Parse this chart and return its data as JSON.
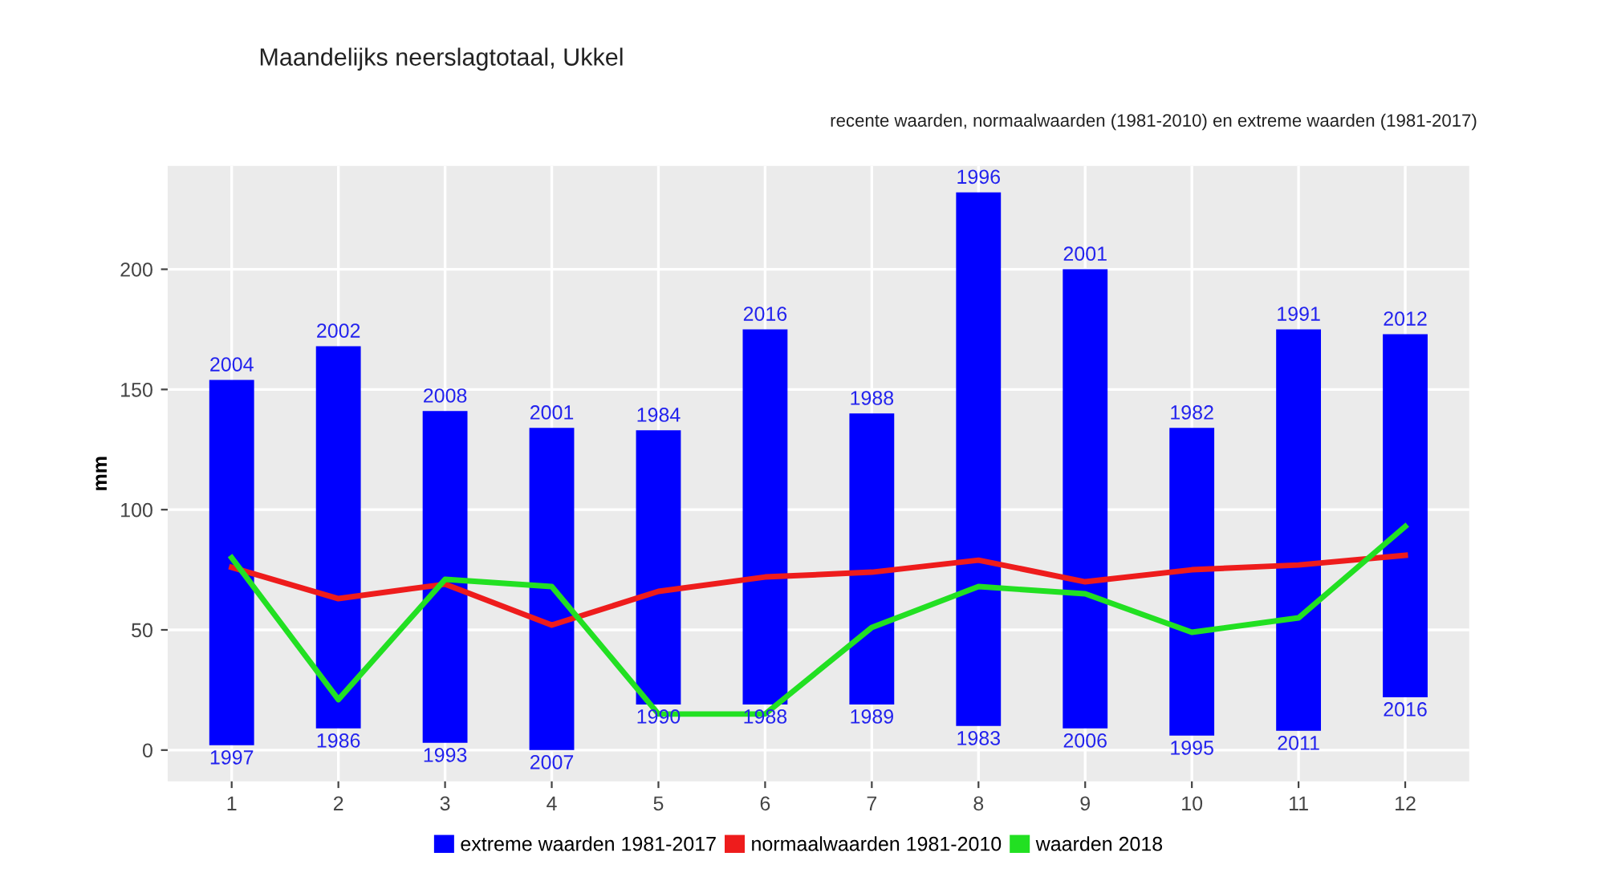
{
  "chart_data": {
    "type": "bar",
    "title": "Maandelijks neerslagtotaal, Ukkel",
    "subtitle": "recente waarden, normaalwaarden (1981-2010) en extreme waarden (1981-2017)",
    "ylabel": "mm",
    "categories": [
      "1",
      "2",
      "3",
      "4",
      "5",
      "6",
      "7",
      "8",
      "9",
      "10",
      "11",
      "12"
    ],
    "series": [
      {
        "name": "extreme waarden 1981-2017",
        "color": "#0000ff",
        "base": [
          2,
          9,
          3,
          0,
          19,
          19,
          19,
          10,
          9,
          6,
          8,
          22
        ],
        "values": [
          152,
          159,
          138,
          134,
          114,
          156,
          121,
          222,
          191,
          128,
          167,
          151
        ]
      },
      {
        "name": "normaalwaarden 1981-2010",
        "type": "line",
        "color": "#ee1c1c",
        "values": [
          76,
          63,
          69,
          52,
          66,
          72,
          74,
          79,
          70,
          75,
          77,
          81
        ]
      },
      {
        "name": "waarden 2018",
        "type": "line",
        "color": "#22e022",
        "values": [
          80,
          21,
          71,
          68,
          15,
          15,
          51,
          68,
          65,
          49,
          55,
          93
        ]
      }
    ],
    "annotations": [
      {
        "text": "2004",
        "x": "1",
        "y": 154
      },
      {
        "text": "1997",
        "x": "1",
        "y": 2
      },
      {
        "text": "2002",
        "x": "2",
        "y": 168
      },
      {
        "text": "1986",
        "x": "2",
        "y": 9
      },
      {
        "text": "2008",
        "x": "3",
        "y": 141
      },
      {
        "text": "1993",
        "x": "3",
        "y": 3
      },
      {
        "text": "2001",
        "x": "4",
        "y": 134
      },
      {
        "text": "2007",
        "x": "4",
        "y": 0
      },
      {
        "text": "1984",
        "x": "5",
        "y": 133
      },
      {
        "text": "1990",
        "x": "5",
        "y": 19
      },
      {
        "text": "2016",
        "x": "6",
        "y": 175
      },
      {
        "text": "1988",
        "x": "6",
        "y": 19
      },
      {
        "text": "1988",
        "x": "7",
        "y": 140
      },
      {
        "text": "1989",
        "x": "7",
        "y": 19
      },
      {
        "text": "1996",
        "x": "8",
        "y": 232
      },
      {
        "text": "1983",
        "x": "8",
        "y": 10
      },
      {
        "text": "2001",
        "x": "9",
        "y": 200
      },
      {
        "text": "2006",
        "x": "9",
        "y": 9
      },
      {
        "text": "1982",
        "x": "10",
        "y": 134
      },
      {
        "text": "1995",
        "x": "10",
        "y": 6
      },
      {
        "text": "1991",
        "x": "11",
        "y": 175
      },
      {
        "text": "2011",
        "x": "11",
        "y": 8
      },
      {
        "text": "2012",
        "x": "12",
        "y": 173
      },
      {
        "text": "2016",
        "x": "12",
        "y": 22
      }
    ],
    "ylim": [
      -13,
      243
    ],
    "yticks": [
      0,
      50,
      100,
      150,
      200
    ],
    "grid": true,
    "legend": "bottom"
  }
}
